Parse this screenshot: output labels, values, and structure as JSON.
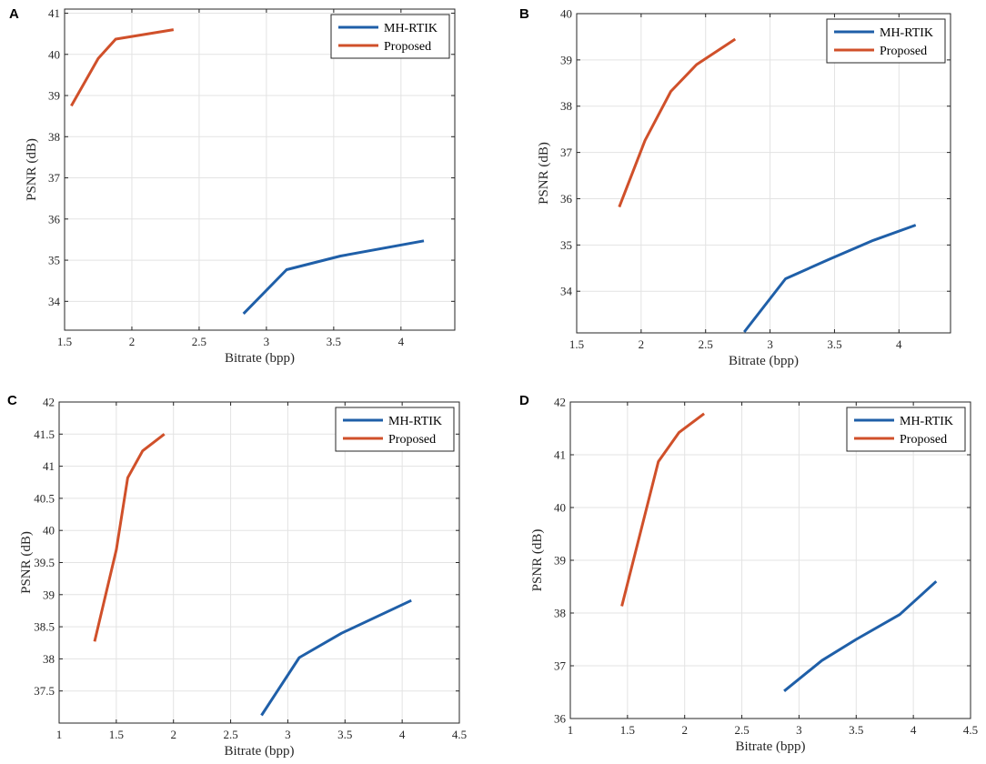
{
  "chart_data": [
    {
      "panel": "A",
      "type": "line",
      "xlabel": "Bitrate (bpp)",
      "ylabel": "PSNR (dB)",
      "xlim": [
        1.5,
        4.4
      ],
      "ylim": [
        33.3,
        41.1
      ],
      "xticks": [
        1.5,
        2,
        2.5,
        3,
        3.5,
        4
      ],
      "xtick_labels": [
        "1.5",
        "2",
        "2.5",
        "3",
        "3.5",
        "4"
      ],
      "yticks": [
        34,
        35,
        36,
        37,
        38,
        39,
        40,
        41
      ],
      "ytick_labels": [
        "34",
        "35",
        "36",
        "37",
        "38",
        "39",
        "40",
        "41"
      ],
      "legend_position": "top-right",
      "series": [
        {
          "name": "MH-RTIK",
          "color": "#1f5fa8",
          "x": [
            2.83,
            3.15,
            3.55,
            4.17
          ],
          "y": [
            33.7,
            34.77,
            35.1,
            35.47
          ]
        },
        {
          "name": "Proposed",
          "color": "#d0502a",
          "x": [
            1.55,
            1.75,
            1.88,
            2.31
          ],
          "y": [
            38.75,
            39.9,
            40.37,
            40.6
          ]
        }
      ]
    },
    {
      "panel": "B",
      "type": "line",
      "xlabel": "Bitrate (bpp)",
      "ylabel": "PSNR (dB)",
      "xlim": [
        1.5,
        4.4
      ],
      "ylim": [
        33.1,
        40.0
      ],
      "xticks": [
        1.5,
        2,
        2.5,
        3,
        3.5,
        4
      ],
      "xtick_labels": [
        "1.5",
        "2",
        "2.5",
        "3",
        "3.5",
        "4"
      ],
      "yticks": [
        34,
        35,
        36,
        37,
        38,
        39,
        40
      ],
      "ytick_labels": [
        "34",
        "35",
        "36",
        "37",
        "38",
        "39",
        "40"
      ],
      "legend_position": "top-right",
      "series": [
        {
          "name": "MH-RTIK",
          "color": "#1f5fa8",
          "x": [
            2.8,
            3.12,
            3.45,
            3.8,
            4.13
          ],
          "y": [
            33.12,
            34.27,
            34.68,
            35.1,
            35.43
          ]
        },
        {
          "name": "Proposed",
          "color": "#d0502a",
          "x": [
            1.83,
            2.03,
            2.23,
            2.43,
            2.73
          ],
          "y": [
            35.82,
            37.26,
            38.32,
            38.9,
            39.45
          ]
        }
      ]
    },
    {
      "panel": "C",
      "type": "line",
      "xlabel": "Bitrate (bpp)",
      "ylabel": "PSNR (dB)",
      "xlim": [
        1.0,
        4.5
      ],
      "ylim": [
        37.0,
        42.0
      ],
      "xticks": [
        1,
        1.5,
        2,
        2.5,
        3,
        3.5,
        4,
        4.5
      ],
      "xtick_labels": [
        "1",
        "1.5",
        "2",
        "2.5",
        "3",
        "3.5",
        "4",
        "4.5"
      ],
      "yticks": [
        37.5,
        38,
        38.5,
        39,
        39.5,
        40,
        40.5,
        41,
        41.5,
        42
      ],
      "ytick_labels": [
        "37.5",
        "38",
        "38.5",
        "39",
        "39.5",
        "40",
        "40.5",
        "41",
        "41.5",
        "42"
      ],
      "legend_position": "top-right",
      "series": [
        {
          "name": "MH-RTIK",
          "color": "#1f5fa8",
          "x": [
            2.77,
            3.1,
            3.47,
            4.08
          ],
          "y": [
            37.12,
            38.02,
            38.4,
            38.91
          ]
        },
        {
          "name": "Proposed",
          "color": "#d0502a",
          "x": [
            1.31,
            1.5,
            1.6,
            1.73,
            1.92
          ],
          "y": [
            38.27,
            39.7,
            40.82,
            41.24,
            41.5
          ]
        }
      ]
    },
    {
      "panel": "D",
      "type": "line",
      "xlabel": "Bitrate (bpp)",
      "ylabel": "PSNR (dB)",
      "xlim": [
        1.0,
        4.5
      ],
      "ylim": [
        36.0,
        42.0
      ],
      "xticks": [
        1,
        1.5,
        2,
        2.5,
        3,
        3.5,
        4,
        4.5
      ],
      "xtick_labels": [
        "1",
        "1.5",
        "2",
        "2.5",
        "3",
        "3.5",
        "4",
        "4.5"
      ],
      "yticks": [
        36,
        37,
        38,
        39,
        40,
        41,
        42
      ],
      "ytick_labels": [
        "36",
        "37",
        "38",
        "39",
        "40",
        "41",
        "42"
      ],
      "legend_position": "top-right",
      "series": [
        {
          "name": "MH-RTIK",
          "color": "#1f5fa8",
          "x": [
            2.87,
            3.2,
            3.5,
            3.88,
            4.2
          ],
          "y": [
            36.52,
            37.1,
            37.5,
            37.97,
            38.6
          ]
        },
        {
          "name": "Proposed",
          "color": "#d0502a",
          "x": [
            1.45,
            1.77,
            1.95,
            2.17
          ],
          "y": [
            38.13,
            40.87,
            41.42,
            41.78
          ]
        }
      ]
    }
  ]
}
